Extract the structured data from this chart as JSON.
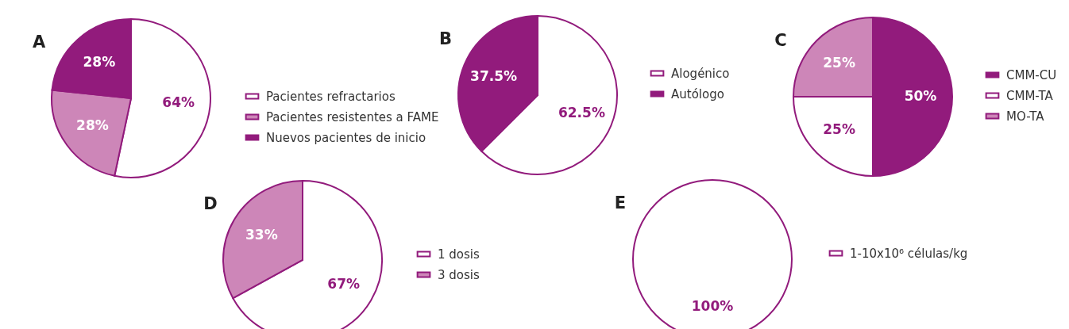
{
  "chart_data": [
    {
      "type": "pie",
      "title": "A",
      "categories": [
        "Pacientes refractarios",
        "Pacientes resistentes a FAME",
        "Nuevos pacientes de inicio"
      ],
      "values": [
        64,
        28,
        28
      ],
      "colors": [
        "#ffffff",
        "#cd86b8",
        "#921b7c"
      ],
      "value_labels": [
        "64%",
        "28%",
        "28%"
      ],
      "legend": "right"
    },
    {
      "type": "pie",
      "title": "B",
      "categories": [
        "Alogénico",
        "Autólogo"
      ],
      "values": [
        62.5,
        37.5
      ],
      "colors": [
        "#ffffff",
        "#921b7c"
      ],
      "value_labels": [
        "62.5%",
        "37.5%"
      ],
      "legend": "right"
    },
    {
      "type": "pie",
      "title": "C",
      "categories": [
        "CMM-CU",
        "CMM-TA",
        "MO-TA"
      ],
      "values": [
        50,
        25,
        25
      ],
      "colors": [
        "#921b7c",
        "#ffffff",
        "#cd86b8"
      ],
      "value_labels": [
        "50%",
        "25%",
        "25%"
      ],
      "legend": "right"
    },
    {
      "type": "pie",
      "title": "D",
      "categories": [
        "1 dosis",
        "3 dosis"
      ],
      "values": [
        67,
        33
      ],
      "colors": [
        "#ffffff",
        "#cd86b8"
      ],
      "value_labels": [
        "67%",
        "33%"
      ],
      "legend": "right"
    },
    {
      "type": "pie",
      "title": "E",
      "categories": [
        "1-10x10⁶ células/kg"
      ],
      "values": [
        100
      ],
      "colors": [
        "#ffffff"
      ],
      "value_labels": [
        "100%"
      ],
      "legend": "right"
    }
  ]
}
